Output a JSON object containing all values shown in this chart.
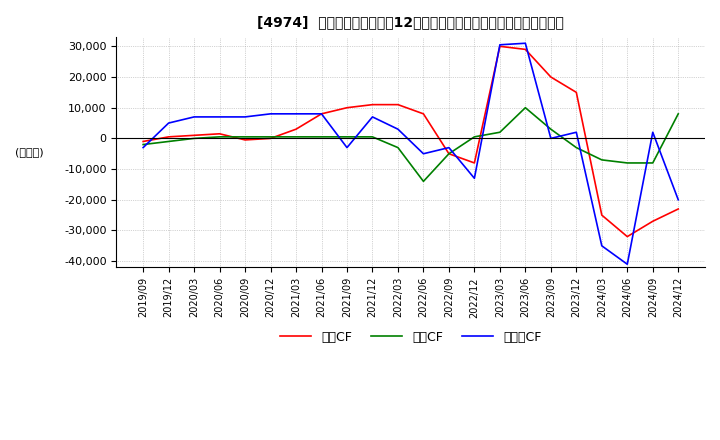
{
  "title": "[4974]  キャッシュフローの12か月移動合計の対前年同期増減額の推移",
  "ylabel": "(百万円)",
  "ylim": [
    -42000,
    33000
  ],
  "yticks": [
    -40000,
    -30000,
    -20000,
    -10000,
    0,
    10000,
    20000,
    30000
  ],
  "legend_labels": [
    "営業CF",
    "投資CF",
    "フリーCF"
  ],
  "legend_colors": [
    "#ff0000",
    "#008000",
    "#0000ff"
  ],
  "dates": [
    "2019/09",
    "2019/12",
    "2020/03",
    "2020/06",
    "2020/09",
    "2020/12",
    "2021/03",
    "2021/06",
    "2021/09",
    "2021/12",
    "2022/03",
    "2022/06",
    "2022/09",
    "2022/12",
    "2023/03",
    "2023/06",
    "2023/09",
    "2023/12",
    "2024/03",
    "2024/06",
    "2024/09",
    "2024/12"
  ],
  "operating_cf": [
    -1000,
    500,
    1000,
    1500,
    -500,
    0,
    3000,
    8000,
    10000,
    11000,
    11000,
    8000,
    -5000,
    -8000,
    30000,
    29000,
    20000,
    15000,
    -25000,
    -32000,
    -27000,
    -23000
  ],
  "investing_cf": [
    -2000,
    -1000,
    0,
    500,
    500,
    500,
    500,
    500,
    500,
    500,
    -3000,
    -14000,
    -5000,
    500,
    2000,
    10000,
    3000,
    -3000,
    -7000,
    -8000,
    -8000,
    8000
  ],
  "free_cf": [
    -3000,
    5000,
    7000,
    7000,
    7000,
    8000,
    8000,
    8000,
    -3000,
    7000,
    3000,
    -5000,
    -3000,
    -13000,
    30500,
    31000,
    0,
    2000,
    -35000,
    -41000,
    2000,
    -20000
  ]
}
